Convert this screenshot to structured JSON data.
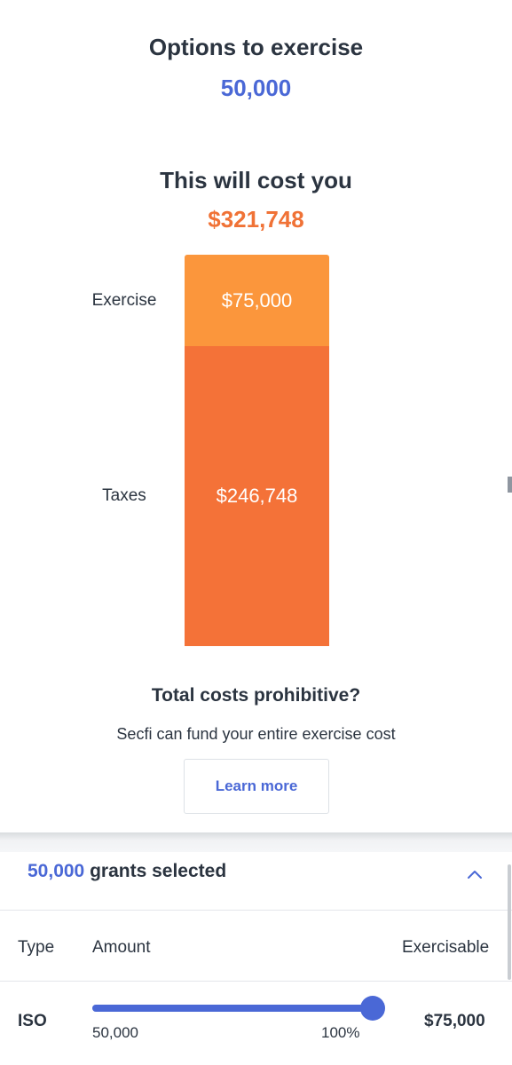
{
  "summary": {
    "options_title": "Options to exercise",
    "options_value": "50,000",
    "cost_title": "This will cost you",
    "cost_value": "$321,748"
  },
  "chart_data": {
    "type": "bar",
    "stacked": true,
    "categories": [
      "Exercise",
      "Taxes"
    ],
    "values": [
      75000,
      246748
    ],
    "value_labels": [
      "$75,000",
      "$246,748"
    ],
    "colors": [
      "#fb963c",
      "#f47238"
    ]
  },
  "promo": {
    "title": "Total costs prohibitive?",
    "subtitle": "Secfi can fund your entire exercise cost",
    "button_label": "Learn more"
  },
  "grants": {
    "count": "50,000",
    "label": "grants selected",
    "columns": [
      "Type",
      "Amount",
      "Exercisable"
    ],
    "rows": [
      {
        "type": "ISO",
        "amount": "50,000",
        "percent_label": "100%",
        "percent": 1.0,
        "exercisable": "$75,000"
      }
    ]
  },
  "colors": {
    "accent": "#4a68d6",
    "cost": "#f07236"
  },
  "icons": {
    "collapse": "chevron-up-icon"
  }
}
